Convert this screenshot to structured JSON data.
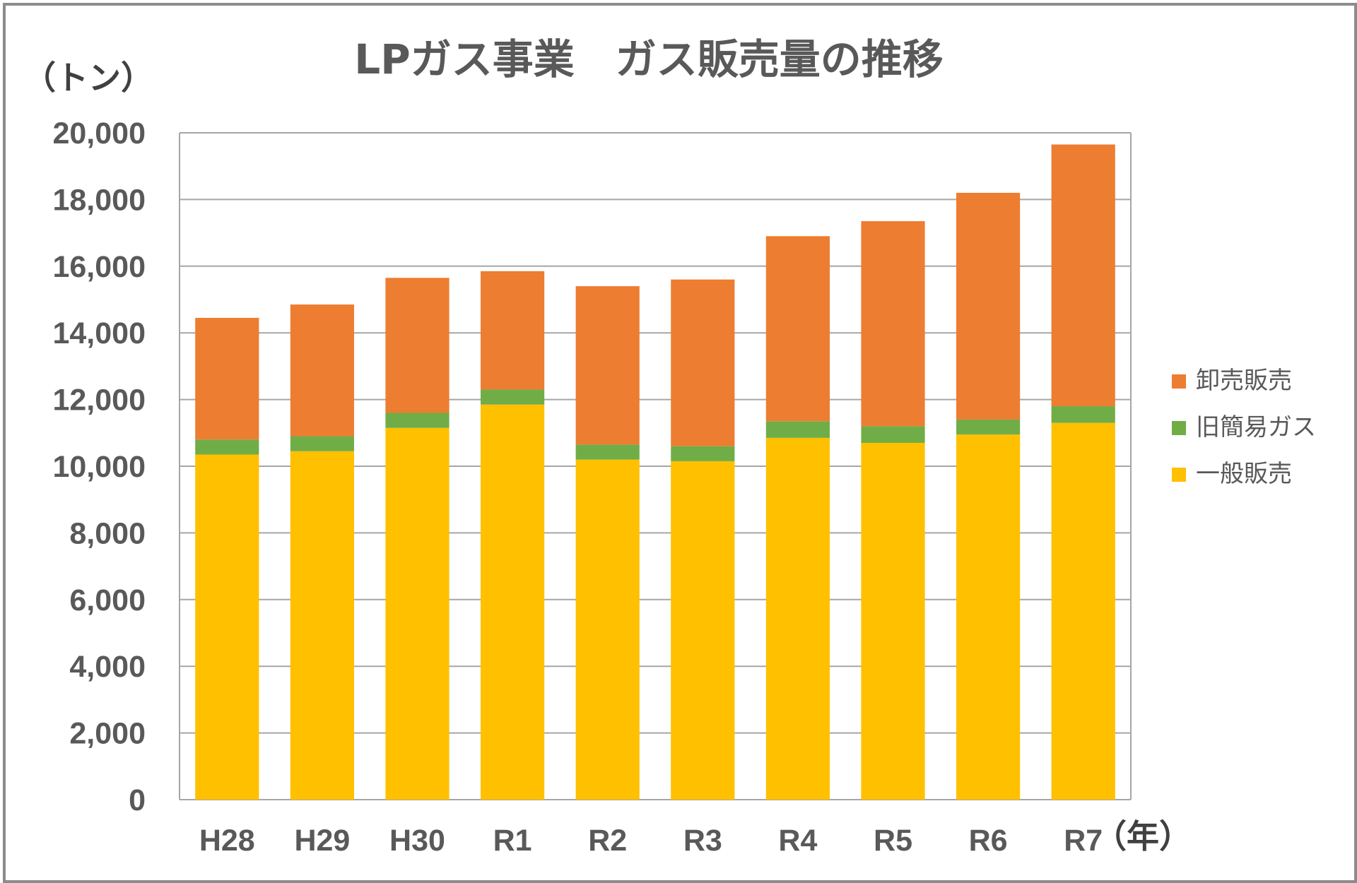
{
  "chart_data": {
    "type": "bar",
    "stacked": true,
    "title": "LPガス事業　ガス販売量の推移",
    "ylabel": "（トン）",
    "xlabel": "（年）",
    "categories": [
      "H28",
      "H29",
      "H30",
      "R1",
      "R2",
      "R3",
      "R4",
      "R5",
      "R6",
      "R7"
    ],
    "ylim": [
      0,
      20000
    ],
    "yticks": [
      0,
      2000,
      4000,
      6000,
      8000,
      10000,
      12000,
      14000,
      16000,
      18000,
      20000
    ],
    "ytick_labels": [
      "0",
      "2,000",
      "4,000",
      "6,000",
      "8,000",
      "10,000",
      "12,000",
      "14,000",
      "16,000",
      "18,000",
      "20,000"
    ],
    "grid": true,
    "legend_position": "right",
    "series": [
      {
        "name": "一般販売",
        "color": "#FFC000",
        "values": [
          10350,
          10450,
          11150,
          11850,
          10200,
          10150,
          10850,
          10700,
          10950,
          11300
        ]
      },
      {
        "name": "旧簡易ガス",
        "color": "#70AD47",
        "values": [
          450,
          450,
          450,
          450,
          450,
          450,
          500,
          500,
          450,
          500
        ]
      },
      {
        "name": "卸売販売",
        "color": "#ED7D31",
        "values": [
          3650,
          3950,
          4050,
          3550,
          4750,
          5000,
          5550,
          6150,
          6800,
          7850
        ]
      }
    ],
    "legend_order": [
      "卸売販売",
      "旧簡易ガス",
      "一般販売"
    ]
  }
}
